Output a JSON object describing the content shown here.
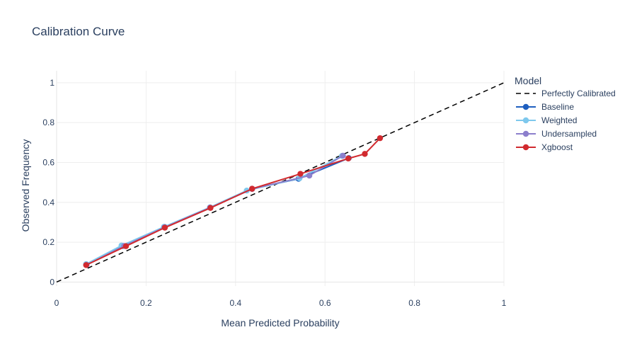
{
  "chart_data": {
    "type": "line",
    "title": "Calibration Curve",
    "xlabel": "Mean Predicted Probability",
    "ylabel": "Observed Frequency",
    "xlim": [
      0,
      1
    ],
    "ylim": [
      -0.02,
      1.06
    ],
    "xticks": [
      "0",
      "0.2",
      "0.4",
      "0.6",
      "0.8",
      "1"
    ],
    "xtick_values": [
      0,
      0.2,
      0.4,
      0.6,
      0.8,
      1
    ],
    "yticks": [
      "0",
      "0.2",
      "0.4",
      "0.6",
      "0.8",
      "1"
    ],
    "ytick_values": [
      0,
      0.2,
      0.4,
      0.6,
      0.8,
      1
    ],
    "grid": true,
    "legend_title": "Model",
    "legend_position": "right",
    "reference": {
      "name": "Perfectly Calibrated",
      "x": [
        0,
        1
      ],
      "y": [
        0,
        1
      ],
      "color": "#000000",
      "dash": "dashed"
    },
    "series": [
      {
        "name": "Baseline",
        "color": "#1f5fbf",
        "x": [
          0.066,
          0.148,
          0.241,
          0.343,
          0.437,
          0.541,
          0.653
        ],
        "y": [
          0.089,
          0.181,
          0.277,
          0.374,
          0.468,
          0.518,
          0.622
        ]
      },
      {
        "name": "Weighted",
        "color": "#7ec8ed",
        "x": [
          0.066,
          0.145,
          0.24,
          0.343,
          0.425,
          0.543,
          0.638
        ],
        "y": [
          0.09,
          0.183,
          0.277,
          0.375,
          0.459,
          0.521,
          0.633
        ]
      },
      {
        "name": "Undersampled",
        "color": "#8c7fcc",
        "x": [
          0.067,
          0.151,
          0.241,
          0.343,
          0.437,
          0.565,
          0.64
        ],
        "y": [
          0.086,
          0.181,
          0.274,
          0.373,
          0.467,
          0.534,
          0.634
        ]
      },
      {
        "name": "Xgboost",
        "color": "#d12a2f",
        "x": [
          0.066,
          0.155,
          0.242,
          0.344,
          0.437,
          0.545,
          0.652,
          0.689,
          0.723
        ],
        "y": [
          0.085,
          0.18,
          0.273,
          0.372,
          0.468,
          0.543,
          0.62,
          0.643,
          0.722
        ]
      }
    ]
  }
}
